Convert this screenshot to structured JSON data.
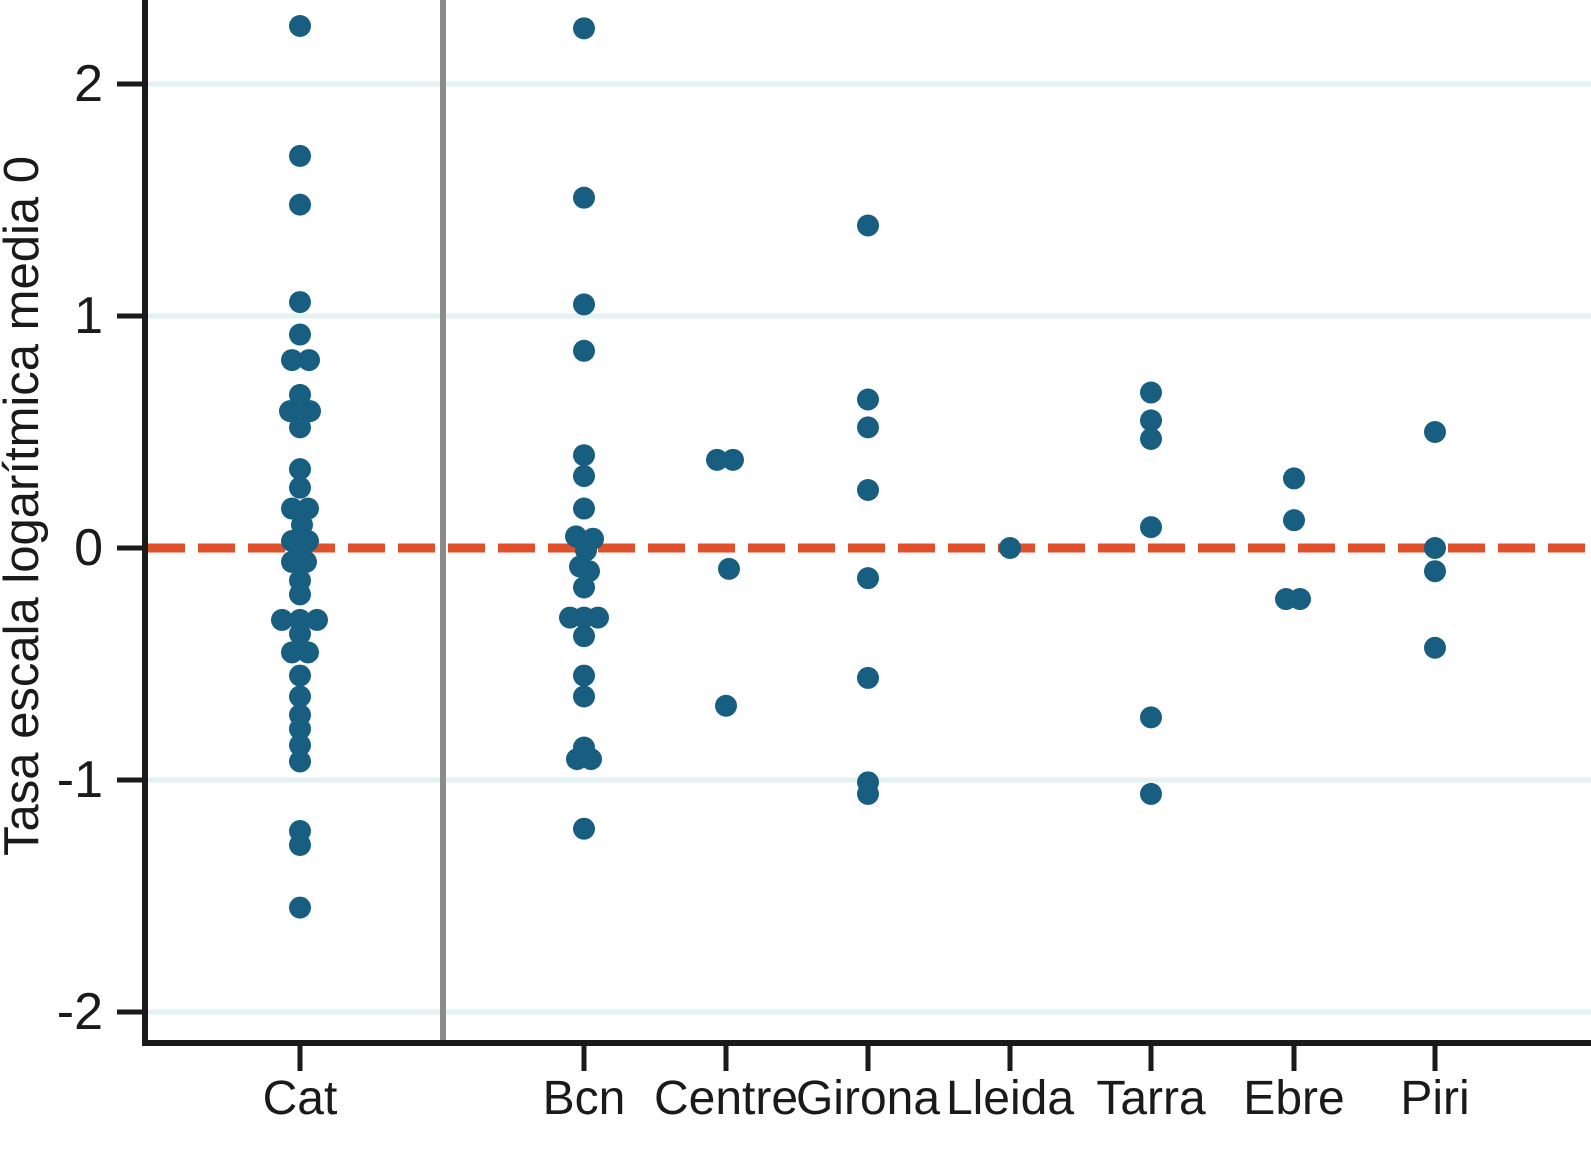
{
  "chart_data": {
    "type": "scatter",
    "subtype": "strip-plot",
    "title": "",
    "xlabel": "",
    "ylabel": "Tasa escala logarítmica media 0",
    "y_ticks": [
      2,
      1,
      0,
      -1,
      -2
    ],
    "ylim": [
      -2.15,
      2.36
    ],
    "grid": "horizontal-light-on-major-ticks-except-zero",
    "legend": "none",
    "reference_line": {
      "y": 0,
      "style": "dashed",
      "color": "#e1502b"
    },
    "divider_after_category": "Cat",
    "categories": [
      "Cat",
      "Bcn",
      "Centre",
      "Girona",
      "Lleida",
      "Tarra",
      "Ebre",
      "Piri"
    ],
    "series": [
      {
        "category": "Cat",
        "points": [
          [
            2.25,
            0
          ],
          [
            1.69,
            0
          ],
          [
            1.48,
            0
          ],
          [
            1.06,
            0
          ],
          [
            0.92,
            0
          ],
          [
            0.81,
            -8
          ],
          [
            0.81,
            9
          ],
          [
            0.66,
            0
          ],
          [
            0.59,
            -10
          ],
          [
            0.59,
            10
          ],
          [
            0.52,
            0
          ],
          [
            0.34,
            0
          ],
          [
            0.26,
            0
          ],
          [
            0.17,
            -8
          ],
          [
            0.17,
            8
          ],
          [
            0.1,
            2
          ],
          [
            0.03,
            -8
          ],
          [
            0.03,
            8
          ],
          [
            -0.01,
            0
          ],
          [
            -0.06,
            -8
          ],
          [
            -0.06,
            6
          ],
          [
            -0.14,
            0
          ],
          [
            -0.2,
            0
          ],
          [
            -0.31,
            -18
          ],
          [
            -0.31,
            0
          ],
          [
            -0.31,
            17
          ],
          [
            -0.37,
            0
          ],
          [
            -0.45,
            -8
          ],
          [
            -0.45,
            8
          ],
          [
            -0.55,
            0
          ],
          [
            -0.64,
            0
          ],
          [
            -0.72,
            0
          ],
          [
            -0.78,
            0
          ],
          [
            -0.85,
            0
          ],
          [
            -0.92,
            0
          ],
          [
            -1.22,
            0
          ],
          [
            -1.28,
            0
          ],
          [
            -1.55,
            0
          ]
        ]
      },
      {
        "category": "Bcn",
        "points": [
          [
            2.24,
            0
          ],
          [
            1.51,
            0
          ],
          [
            1.05,
            0
          ],
          [
            0.85,
            0
          ],
          [
            0.4,
            0
          ],
          [
            0.31,
            0
          ],
          [
            0.17,
            0
          ],
          [
            0.05,
            -8
          ],
          [
            0.04,
            9
          ],
          [
            -0.01,
            2
          ],
          [
            -0.08,
            -4
          ],
          [
            -0.1,
            5
          ],
          [
            -0.17,
            0
          ],
          [
            -0.3,
            -14
          ],
          [
            -0.3,
            0
          ],
          [
            -0.3,
            14
          ],
          [
            -0.38,
            0
          ],
          [
            -0.55,
            0
          ],
          [
            -0.64,
            0
          ],
          [
            -0.86,
            0
          ],
          [
            -0.91,
            -7
          ],
          [
            -0.91,
            7
          ],
          [
            -1.21,
            0
          ]
        ]
      },
      {
        "category": "Centre",
        "points": [
          [
            0.38,
            -9
          ],
          [
            0.38,
            7
          ],
          [
            -0.09,
            3
          ],
          [
            -0.68,
            0
          ]
        ]
      },
      {
        "category": "Girona",
        "points": [
          [
            1.39,
            0
          ],
          [
            0.64,
            0
          ],
          [
            0.52,
            0
          ],
          [
            0.25,
            0
          ],
          [
            -0.13,
            0
          ],
          [
            -0.56,
            0
          ],
          [
            -1.01,
            0
          ],
          [
            -1.06,
            0
          ]
        ]
      },
      {
        "category": "Lleida",
        "points": [
          [
            0.0,
            0
          ]
        ]
      },
      {
        "category": "Tarra",
        "points": [
          [
            0.67,
            0
          ],
          [
            0.55,
            0
          ],
          [
            0.47,
            0
          ],
          [
            0.09,
            0
          ],
          [
            -0.73,
            0
          ],
          [
            -1.06,
            0
          ]
        ]
      },
      {
        "category": "Ebre",
        "points": [
          [
            0.3,
            0
          ],
          [
            0.12,
            0
          ],
          [
            -0.22,
            -8
          ],
          [
            -0.22,
            6
          ]
        ]
      },
      {
        "category": "Piri",
        "points": [
          [
            0.5,
            0
          ],
          [
            0.0,
            0
          ],
          [
            -0.1,
            0
          ],
          [
            -0.43,
            0
          ]
        ]
      }
    ]
  },
  "colors": {
    "point": "#175e80",
    "reference_line": "#e1502b",
    "grid": "#e3f1f0",
    "axis": "#1a1a1a",
    "divider": "#8a8a8a",
    "text": "#1a1a1a",
    "background": "#ffffff"
  }
}
